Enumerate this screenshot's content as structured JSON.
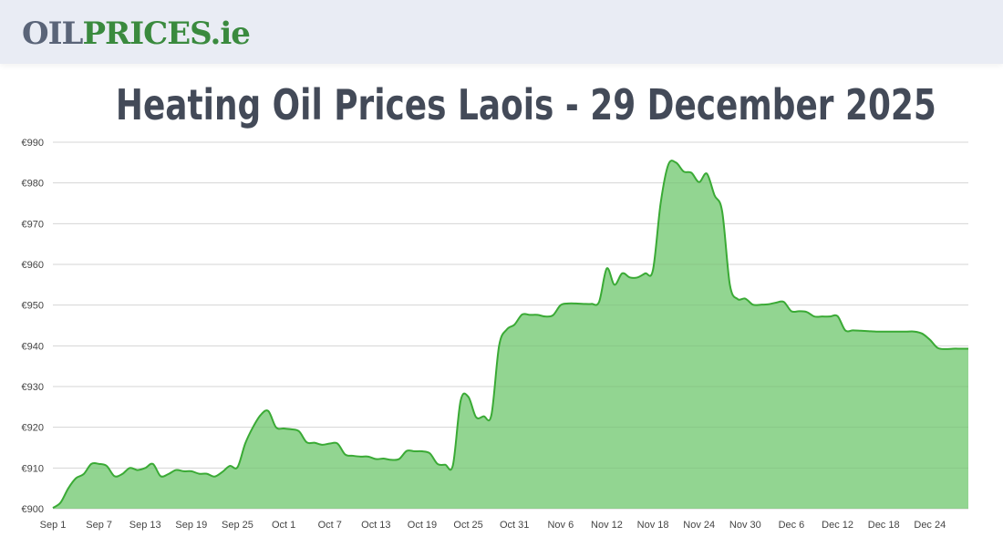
{
  "header": {
    "logo_part1": "OIL",
    "logo_part2": "PRICES.ie"
  },
  "page": {
    "title": "Heating Oil Prices Laois - 29 December 2025"
  },
  "colors": {
    "line": "#3aaa35",
    "fill": "#92d591",
    "grid": "#e3e3e3",
    "logo_grey": "#5a6478",
    "logo_green": "#3a8a3e"
  },
  "chart_data": {
    "type": "area",
    "title": "Heating Oil Prices Laois - 29 December 2025",
    "xlabel": "",
    "ylabel": "",
    "ylim": [
      900,
      990
    ],
    "y_ticks": [
      990,
      980,
      970,
      960,
      950,
      940,
      930,
      920,
      910,
      900
    ],
    "y_tick_labels": [
      "€990",
      "€980",
      "€970",
      "€960",
      "€950",
      "€940",
      "€930",
      "€920",
      "€910",
      "€900"
    ],
    "x_range": [
      "2025-09-01",
      "2025-12-29"
    ],
    "x_ticks": [
      "2025-09-01",
      "2025-09-07",
      "2025-09-13",
      "2025-09-19",
      "2025-09-25",
      "2025-10-01",
      "2025-10-07",
      "2025-10-13",
      "2025-10-19",
      "2025-10-25",
      "2025-10-31",
      "2025-11-06",
      "2025-11-12",
      "2025-11-18",
      "2025-11-24",
      "2025-11-30",
      "2025-12-06",
      "2025-12-12",
      "2025-12-18",
      "2025-12-24"
    ],
    "x_tick_labels": [
      "Sep 1",
      "Sep 7",
      "Sep 13",
      "Sep 19",
      "Sep 25",
      "Oct 1",
      "Oct 7",
      "Oct 13",
      "Oct 19",
      "Oct 25",
      "Oct 31",
      "Nov 6",
      "Nov 12",
      "Nov 18",
      "Nov 24",
      "Nov 30",
      "Dec 6",
      "Dec 12",
      "Dec 18",
      "Dec 24"
    ],
    "grid": true,
    "legend": "none",
    "x_start": "2025-09-01",
    "values": [
      900.2,
      901.5,
      905,
      907.5,
      908.5,
      911,
      911,
      910.5,
      908,
      908.5,
      910,
      909.5,
      910,
      911,
      908,
      908.5,
      909.5,
      909.2,
      909.2,
      908.6,
      908.6,
      907.9,
      909,
      910.5,
      910.2,
      916,
      920,
      923,
      924,
      920,
      919.7,
      919.5,
      919,
      916.3,
      916.2,
      915.7,
      916,
      916,
      913.3,
      913,
      912.8,
      912.8,
      912.2,
      912.3,
      912,
      912.2,
      914.2,
      914.1,
      914.1,
      913.6,
      911,
      910.8,
      910.7,
      926.5,
      927.5,
      922.5,
      922.7,
      923,
      940,
      944,
      945.2,
      947.7,
      947.6,
      947.6,
      947.2,
      947.5,
      950,
      950.4,
      950.4,
      950.3,
      950.3,
      950.8,
      959,
      955,
      957.8,
      956.8,
      956.8,
      957.8,
      958.6,
      975,
      984.5,
      985,
      982.8,
      982.5,
      980.2,
      982.3,
      977,
      973,
      955,
      951.5,
      951.6,
      950.1,
      950.1,
      950.2,
      950.6,
      950.8,
      948.5,
      948.5,
      948.3,
      947.2,
      947.2,
      947.2,
      947.3,
      943.8,
      943.8,
      943.7,
      943.6,
      943.5,
      943.5,
      943.5,
      943.5,
      943.5,
      943.5,
      943,
      941.5,
      939.5,
      939.2,
      939.3,
      939.3,
      939.3
    ]
  }
}
